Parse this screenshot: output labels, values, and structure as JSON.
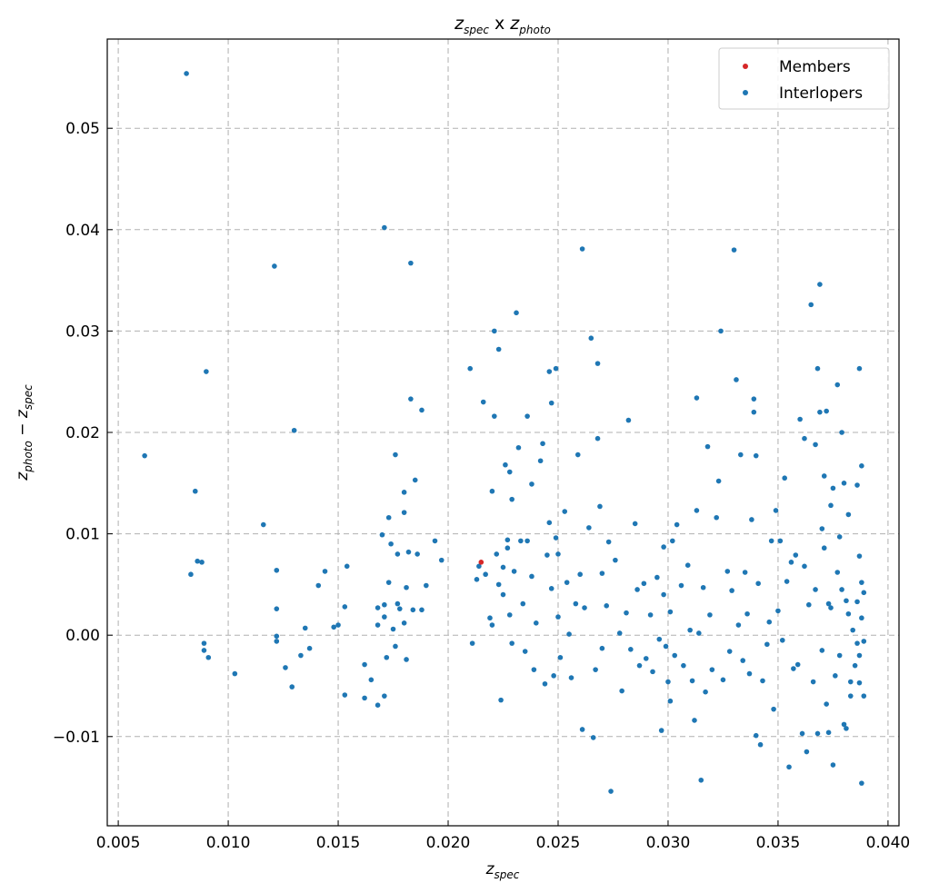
{
  "chart_data": {
    "type": "scatter",
    "title": {
      "z1": "z",
      "sub1": "spec",
      "mid": " x ",
      "z2": "z",
      "sub2": "photo"
    },
    "xlabel": {
      "z": "z",
      "sub": "spec"
    },
    "ylabel": {
      "z1": "z",
      "sub1": "photo",
      "op": " − ",
      "z2": "z",
      "sub2": "spec"
    },
    "xlim": [
      0.0045,
      0.0405
    ],
    "ylim": [
      -0.0188,
      0.0588
    ],
    "xticks": [
      0.005,
      0.01,
      0.015,
      0.02,
      0.025,
      0.03,
      0.035,
      0.04
    ],
    "xtick_labels": [
      "0.005",
      "0.010",
      "0.015",
      "0.020",
      "0.025",
      "0.030",
      "0.035",
      "0.040"
    ],
    "yticks": [
      -0.01,
      0.0,
      0.01,
      0.02,
      0.03,
      0.04,
      0.05
    ],
    "ytick_labels": [
      "−0.01",
      "0.00",
      "0.01",
      "0.02",
      "0.03",
      "0.04",
      "0.05"
    ],
    "grid": true,
    "legend_position": "top-right",
    "colors": {
      "members": "#d62728",
      "interlopers": "#1f77b4"
    },
    "series": [
      {
        "name": "Members",
        "points": [
          [
            0.0215,
            0.0072
          ]
        ]
      },
      {
        "name": "Interlopers",
        "points": [
          [
            0.0081,
            0.0554
          ],
          [
            0.0062,
            0.0177
          ],
          [
            0.0085,
            0.0142
          ],
          [
            0.009,
            0.026
          ],
          [
            0.0086,
            0.0073
          ],
          [
            0.0088,
            0.0072
          ],
          [
            0.0083,
            0.006
          ],
          [
            0.0089,
            -0.0008
          ],
          [
            0.0089,
            -0.0015
          ],
          [
            0.0091,
            -0.0022
          ],
          [
            0.0103,
            -0.0038
          ],
          [
            0.0116,
            0.0109
          ],
          [
            0.0121,
            0.0364
          ],
          [
            0.0122,
            0.0064
          ],
          [
            0.0122,
            0.0026
          ],
          [
            0.0122,
            -0.0001
          ],
          [
            0.0122,
            -0.0006
          ],
          [
            0.0126,
            -0.0032
          ],
          [
            0.0129,
            -0.0051
          ],
          [
            0.013,
            0.0202
          ],
          [
            0.0133,
            -0.002
          ],
          [
            0.0135,
            0.0007
          ],
          [
            0.0137,
            -0.0013
          ],
          [
            0.0141,
            0.0049
          ],
          [
            0.0144,
            0.0063
          ],
          [
            0.0148,
            0.0008
          ],
          [
            0.015,
            0.001
          ],
          [
            0.0153,
            0.0028
          ],
          [
            0.0154,
            0.0068
          ],
          [
            0.0153,
            -0.0059
          ],
          [
            0.0162,
            -0.0029
          ],
          [
            0.0162,
            -0.0062
          ],
          [
            0.0165,
            -0.0044
          ],
          [
            0.0168,
            0.0027
          ],
          [
            0.0168,
            0.001
          ],
          [
            0.0168,
            -0.0069
          ],
          [
            0.0171,
            0.0402
          ],
          [
            0.017,
            0.0099
          ],
          [
            0.0171,
            0.003
          ],
          [
            0.0171,
            0.0018
          ],
          [
            0.0172,
            -0.0022
          ],
          [
            0.0171,
            -0.006
          ],
          [
            0.0173,
            0.0116
          ],
          [
            0.0174,
            0.009
          ],
          [
            0.0173,
            0.0052
          ],
          [
            0.0175,
            0.0006
          ],
          [
            0.0176,
            0.0178
          ],
          [
            0.0176,
            -0.0011
          ],
          [
            0.0177,
            0.008
          ],
          [
            0.0177,
            0.0031
          ],
          [
            0.0178,
            0.0026
          ],
          [
            0.018,
            0.0141
          ],
          [
            0.018,
            0.0121
          ],
          [
            0.0181,
            0.0047
          ],
          [
            0.018,
            0.0012
          ],
          [
            0.0181,
            -0.0024
          ],
          [
            0.0182,
            0.0082
          ],
          [
            0.0183,
            0.0367
          ],
          [
            0.0183,
            0.0233
          ],
          [
            0.0184,
            0.0025
          ],
          [
            0.0185,
            0.0153
          ],
          [
            0.0186,
            0.008
          ],
          [
            0.0188,
            0.0222
          ],
          [
            0.0188,
            0.0025
          ],
          [
            0.019,
            0.0049
          ],
          [
            0.0194,
            0.0093
          ],
          [
            0.0197,
            0.0074
          ],
          [
            0.021,
            0.0263
          ],
          [
            0.0211,
            -0.0008
          ],
          [
            0.0213,
            0.0055
          ],
          [
            0.0214,
            0.0068
          ],
          [
            0.0216,
            0.023
          ],
          [
            0.0217,
            0.006
          ],
          [
            0.0219,
            0.0017
          ],
          [
            0.022,
            0.0142
          ],
          [
            0.022,
            0.001
          ],
          [
            0.0221,
            0.03
          ],
          [
            0.0221,
            0.0216
          ],
          [
            0.0222,
            0.008
          ],
          [
            0.0223,
            0.0282
          ],
          [
            0.0223,
            0.005
          ],
          [
            0.0224,
            -0.0064
          ],
          [
            0.0225,
            0.0067
          ],
          [
            0.0225,
            0.004
          ],
          [
            0.0226,
            0.0168
          ],
          [
            0.0227,
            0.0094
          ],
          [
            0.0227,
            0.0086
          ],
          [
            0.0228,
            0.0161
          ],
          [
            0.0228,
            0.002
          ],
          [
            0.0229,
            0.0134
          ],
          [
            0.0229,
            -0.0008
          ],
          [
            0.023,
            0.0063
          ],
          [
            0.0231,
            0.0318
          ],
          [
            0.0232,
            0.0185
          ],
          [
            0.0233,
            0.0093
          ],
          [
            0.0234,
            0.0031
          ],
          [
            0.0235,
            -0.0016
          ],
          [
            0.0236,
            0.0216
          ],
          [
            0.0236,
            0.0093
          ],
          [
            0.0238,
            0.0149
          ],
          [
            0.0238,
            0.0058
          ],
          [
            0.0239,
            -0.0034
          ],
          [
            0.024,
            0.0012
          ],
          [
            0.0242,
            0.0172
          ],
          [
            0.0243,
            0.0189
          ],
          [
            0.0244,
            -0.0048
          ],
          [
            0.0245,
            0.0079
          ],
          [
            0.0246,
            0.026
          ],
          [
            0.0246,
            0.0111
          ],
          [
            0.0247,
            0.0229
          ],
          [
            0.0247,
            0.0046
          ],
          [
            0.0248,
            -0.004
          ],
          [
            0.0249,
            0.0263
          ],
          [
            0.0249,
            0.0096
          ],
          [
            0.025,
            0.008
          ],
          [
            0.025,
            0.0018
          ],
          [
            0.0251,
            -0.0022
          ],
          [
            0.0253,
            0.0122
          ],
          [
            0.0254,
            0.0052
          ],
          [
            0.0255,
            0.0001
          ],
          [
            0.0256,
            -0.0042
          ],
          [
            0.0258,
            0.0031
          ],
          [
            0.0259,
            0.0178
          ],
          [
            0.026,
            0.006
          ],
          [
            0.0261,
            0.0381
          ],
          [
            0.0261,
            -0.0093
          ],
          [
            0.0262,
            0.0027
          ],
          [
            0.0264,
            0.0106
          ],
          [
            0.0265,
            0.0293
          ],
          [
            0.0266,
            -0.0101
          ],
          [
            0.0267,
            -0.0034
          ],
          [
            0.0268,
            0.0268
          ],
          [
            0.0268,
            0.0194
          ],
          [
            0.0269,
            0.0127
          ],
          [
            0.027,
            0.0061
          ],
          [
            0.027,
            -0.0013
          ],
          [
            0.0272,
            0.0029
          ],
          [
            0.0273,
            0.0092
          ],
          [
            0.0274,
            -0.0154
          ],
          [
            0.0276,
            0.0074
          ],
          [
            0.0278,
            0.0002
          ],
          [
            0.0279,
            -0.0055
          ],
          [
            0.0281,
            0.0022
          ],
          [
            0.0282,
            0.0212
          ],
          [
            0.0283,
            -0.0014
          ],
          [
            0.0285,
            0.011
          ],
          [
            0.0286,
            0.0045
          ],
          [
            0.0287,
            -0.003
          ],
          [
            0.0289,
            0.0051
          ],
          [
            0.029,
            -0.0023
          ],
          [
            0.0292,
            0.002
          ],
          [
            0.0293,
            -0.0036
          ],
          [
            0.0295,
            0.0057
          ],
          [
            0.0296,
            -0.0004
          ],
          [
            0.0297,
            -0.0094
          ],
          [
            0.0298,
            0.0087
          ],
          [
            0.0298,
            0.004
          ],
          [
            0.0299,
            -0.0011
          ],
          [
            0.03,
            -0.0046
          ],
          [
            0.0301,
            0.0023
          ],
          [
            0.0301,
            -0.0065
          ],
          [
            0.0302,
            0.0093
          ],
          [
            0.0303,
            -0.002
          ],
          [
            0.0304,
            0.0109
          ],
          [
            0.0306,
            0.0049
          ],
          [
            0.0307,
            -0.003
          ],
          [
            0.0309,
            0.0069
          ],
          [
            0.031,
            0.0005
          ],
          [
            0.0311,
            -0.0045
          ],
          [
            0.0312,
            -0.0084
          ],
          [
            0.0313,
            0.0234
          ],
          [
            0.0313,
            0.0123
          ],
          [
            0.0314,
            0.0002
          ],
          [
            0.0315,
            -0.0143
          ],
          [
            0.0316,
            0.0047
          ],
          [
            0.0317,
            -0.0056
          ],
          [
            0.0318,
            0.0186
          ],
          [
            0.0319,
            0.002
          ],
          [
            0.032,
            -0.0034
          ],
          [
            0.0322,
            0.0116
          ],
          [
            0.0323,
            0.0152
          ],
          [
            0.0324,
            0.03
          ],
          [
            0.0325,
            -0.0044
          ],
          [
            0.0327,
            0.0063
          ],
          [
            0.0328,
            -0.0016
          ],
          [
            0.0329,
            0.0044
          ],
          [
            0.033,
            0.038
          ],
          [
            0.0331,
            0.0252
          ],
          [
            0.0332,
            0.001
          ],
          [
            0.0333,
            0.0178
          ],
          [
            0.0334,
            -0.0025
          ],
          [
            0.0335,
            0.0062
          ],
          [
            0.0336,
            0.0021
          ],
          [
            0.0337,
            -0.0038
          ],
          [
            0.0338,
            0.0114
          ],
          [
            0.0339,
            0.0233
          ],
          [
            0.0339,
            0.022
          ],
          [
            0.034,
            0.0177
          ],
          [
            0.034,
            -0.0099
          ],
          [
            0.0341,
            0.0051
          ],
          [
            0.0342,
            -0.0108
          ],
          [
            0.0343,
            -0.0045
          ],
          [
            0.0345,
            -0.0009
          ],
          [
            0.0346,
            0.0013
          ],
          [
            0.0347,
            0.0093
          ],
          [
            0.0348,
            -0.0073
          ],
          [
            0.0349,
            0.0123
          ],
          [
            0.035,
            0.0024
          ],
          [
            0.0351,
            0.0093
          ],
          [
            0.0352,
            -0.0005
          ],
          [
            0.0353,
            0.0155
          ],
          [
            0.0354,
            0.0053
          ],
          [
            0.0355,
            -0.013
          ],
          [
            0.0356,
            0.0072
          ],
          [
            0.0357,
            -0.0033
          ],
          [
            0.0358,
            0.0079
          ],
          [
            0.0359,
            -0.0029
          ],
          [
            0.036,
            0.0213
          ],
          [
            0.0361,
            -0.0097
          ],
          [
            0.0362,
            0.0194
          ],
          [
            0.0362,
            0.0068
          ],
          [
            0.0363,
            -0.0115
          ],
          [
            0.0364,
            0.003
          ],
          [
            0.0365,
            0.0326
          ],
          [
            0.0366,
            -0.0046
          ],
          [
            0.0367,
            0.0188
          ],
          [
            0.0367,
            0.0045
          ],
          [
            0.0368,
            0.0263
          ],
          [
            0.0368,
            -0.0097
          ],
          [
            0.0369,
            0.0346
          ],
          [
            0.0369,
            0.022
          ],
          [
            0.037,
            0.0105
          ],
          [
            0.037,
            -0.0015
          ],
          [
            0.0371,
            0.0157
          ],
          [
            0.0371,
            0.0086
          ],
          [
            0.0372,
            -0.0068
          ],
          [
            0.0372,
            0.0221
          ],
          [
            0.0373,
            0.0031
          ],
          [
            0.0373,
            -0.0096
          ],
          [
            0.0374,
            0.0128
          ],
          [
            0.0374,
            0.0027
          ],
          [
            0.0375,
            -0.0128
          ],
          [
            0.0375,
            0.0145
          ],
          [
            0.0376,
            -0.004
          ],
          [
            0.0377,
            0.0247
          ],
          [
            0.0377,
            0.0062
          ],
          [
            0.0378,
            -0.002
          ],
          [
            0.0378,
            0.0097
          ],
          [
            0.0379,
            0.02
          ],
          [
            0.0379,
            0.0045
          ],
          [
            0.038,
            0.015
          ],
          [
            0.038,
            -0.0088
          ],
          [
            0.0381,
            0.0034
          ],
          [
            0.0381,
            -0.0092
          ],
          [
            0.0382,
            0.0119
          ],
          [
            0.0382,
            0.0021
          ],
          [
            0.0383,
            -0.0046
          ],
          [
            0.0383,
            -0.006
          ],
          [
            0.0384,
            0.0005
          ],
          [
            0.0385,
            -0.003
          ],
          [
            0.0386,
            0.0148
          ],
          [
            0.0386,
            -0.0008
          ],
          [
            0.0387,
            0.0263
          ],
          [
            0.0387,
            0.0078
          ],
          [
            0.0387,
            -0.0047
          ],
          [
            0.0388,
            0.0167
          ],
          [
            0.0388,
            0.0052
          ],
          [
            0.0388,
            0.0017
          ],
          [
            0.0388,
            -0.0146
          ],
          [
            0.0389,
            0.0042
          ],
          [
            0.0389,
            -0.006
          ],
          [
            0.0389,
            -0.0006
          ],
          [
            0.0387,
            -0.002
          ],
          [
            0.0386,
            0.0033
          ]
        ]
      }
    ]
  }
}
